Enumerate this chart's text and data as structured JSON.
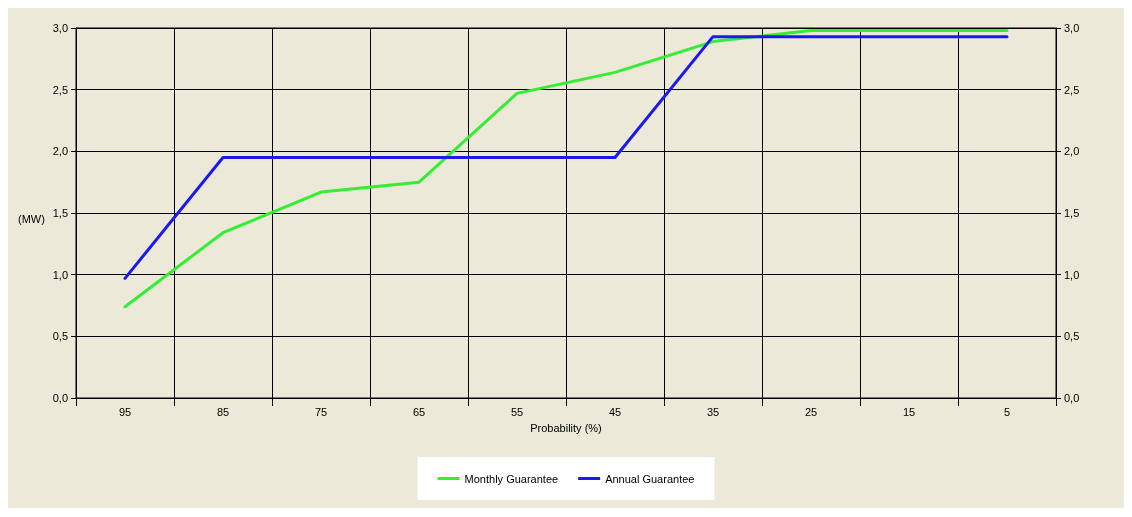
{
  "chart_data": {
    "type": "line",
    "xlabel": "Probability (%)",
    "ylabel": "(MW)",
    "categories": [
      "95",
      "85",
      "75",
      "65",
      "55",
      "45",
      "35",
      "25",
      "15",
      "5"
    ],
    "series": [
      {
        "name": "Monthly Guarantee",
        "color": "#33ee33",
        "values": [
          0.74,
          1.34,
          1.67,
          1.75,
          2.47,
          2.64,
          2.89,
          2.98,
          2.98,
          2.98
        ]
      },
      {
        "name": "Annual Guarantee",
        "color": "#1a1aee",
        "values": [
          0.97,
          1.95,
          1.95,
          1.95,
          1.95,
          1.95,
          2.93,
          2.93,
          2.93,
          2.93
        ]
      }
    ],
    "ylim": [
      0,
      3
    ],
    "yticks": [
      {
        "value": 0,
        "label": "0,0"
      },
      {
        "value": 0.5,
        "label": "0,5"
      },
      {
        "value": 1,
        "label": "1,0"
      },
      {
        "value": 1.5,
        "label": "1,5"
      },
      {
        "value": 2,
        "label": "2,0"
      },
      {
        "value": 2.5,
        "label": "2,5"
      },
      {
        "value": 3,
        "label": "3,0"
      }
    ],
    "y2lim": [
      0,
      3
    ],
    "y2ticks": [
      {
        "value": 0,
        "label": "0,0"
      },
      {
        "value": 0.5,
        "label": "0,5"
      },
      {
        "value": 1,
        "label": "1,0"
      },
      {
        "value": 1.5,
        "label": "1,5"
      },
      {
        "value": 2,
        "label": "2,0"
      },
      {
        "value": 2.5,
        "label": "2,5"
      },
      {
        "value": 3,
        "label": "3,0"
      }
    ],
    "grid": true,
    "legend": "bottom",
    "marker": "none",
    "line_style": "solid"
  }
}
